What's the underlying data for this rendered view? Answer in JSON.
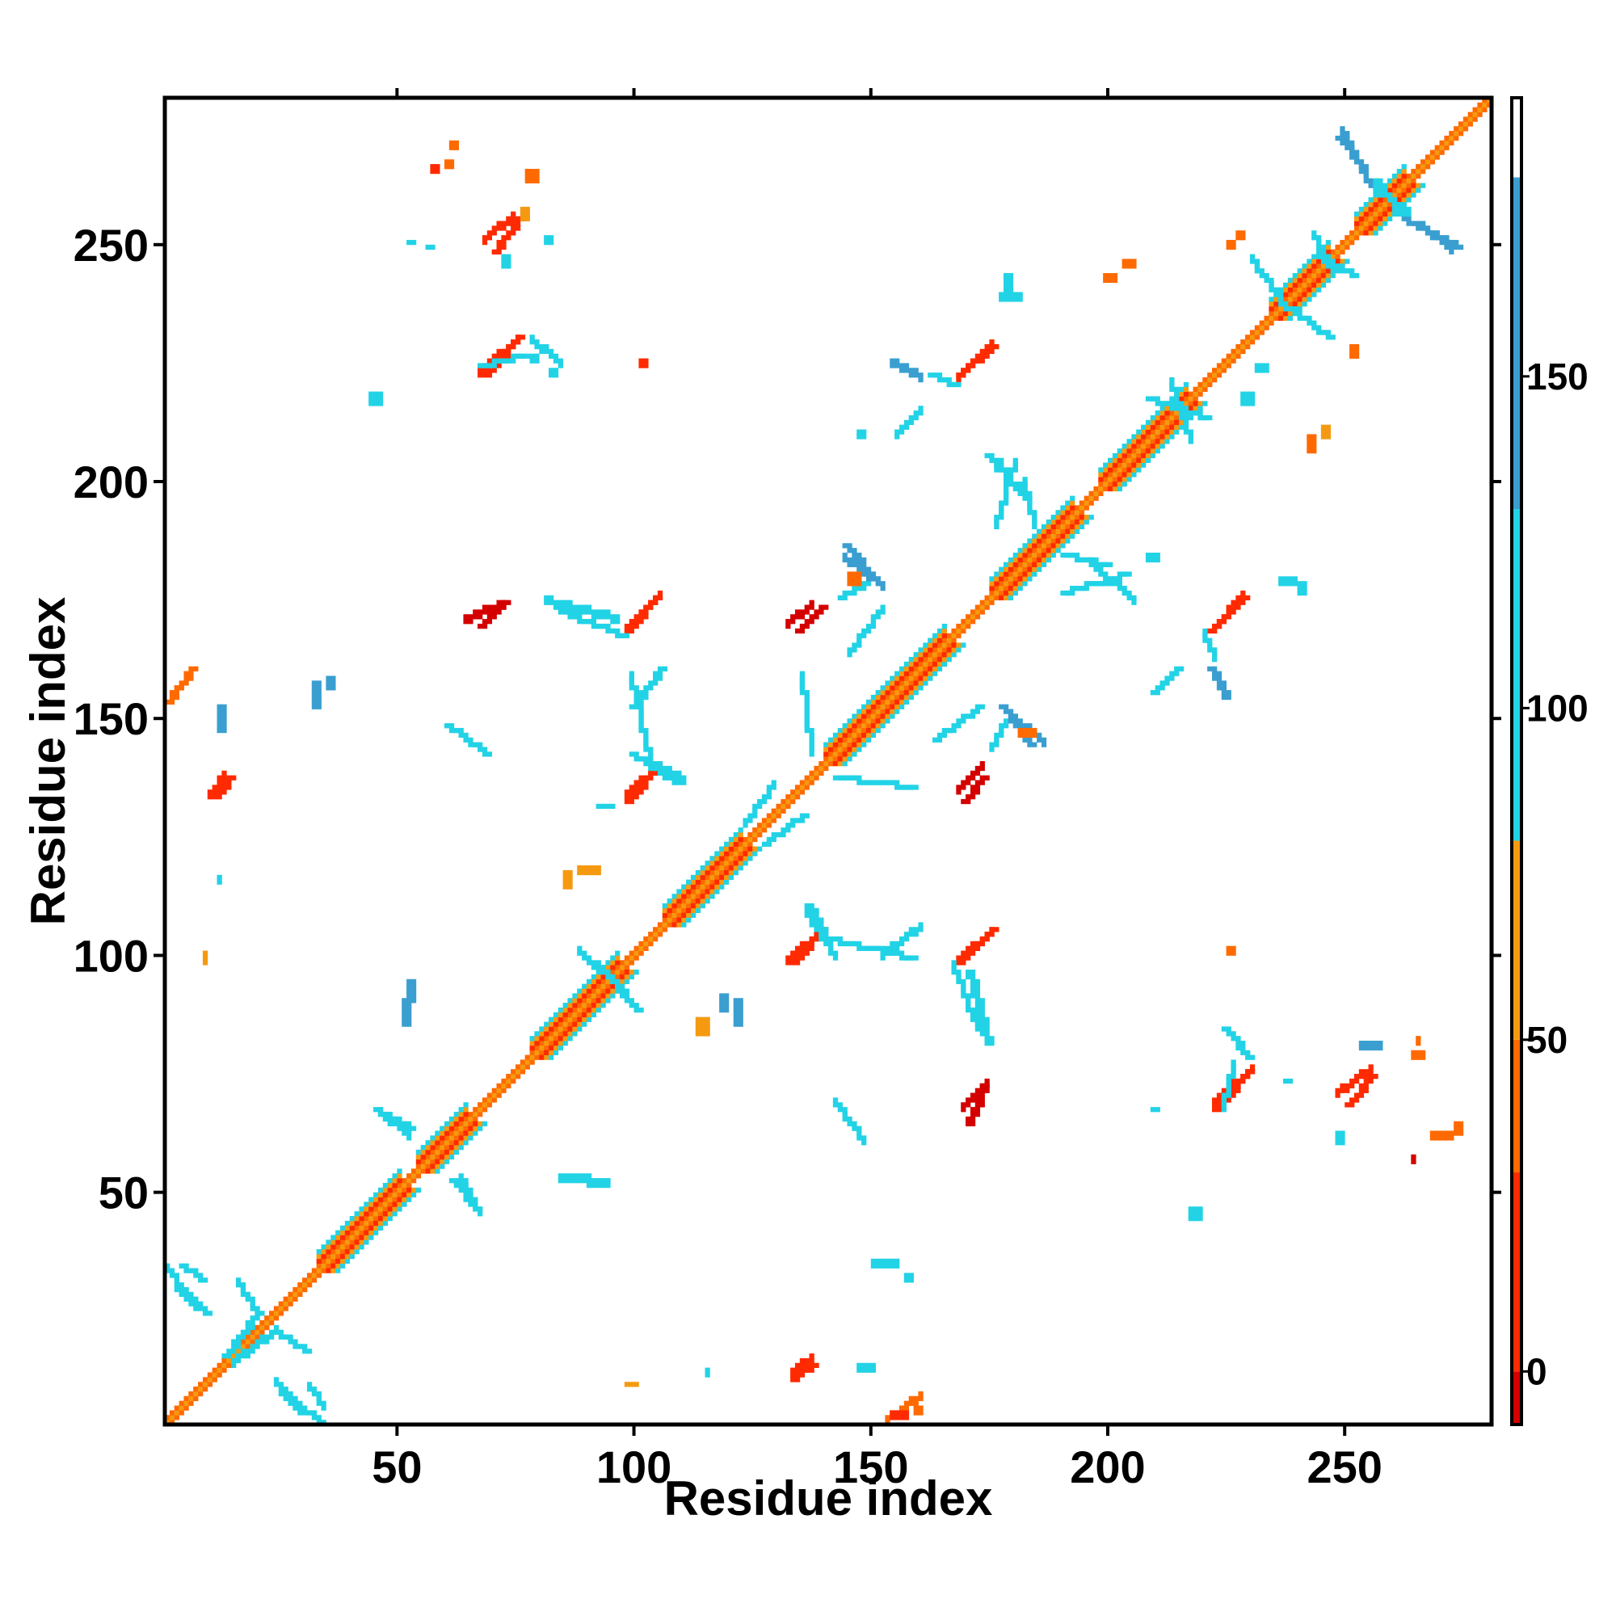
{
  "chart_data": {
    "type": "heatmap",
    "xlabel": "Residue index",
    "ylabel": "Residue index",
    "xlim": [
      1,
      281
    ],
    "ylim": [
      1,
      281
    ],
    "x_ticks": [
      50,
      100,
      150,
      200,
      250
    ],
    "y_ticks": [
      50,
      100,
      150,
      200,
      250
    ],
    "colorbar": {
      "range": [
        -8,
        192
      ],
      "ticks": [
        0,
        50,
        100,
        150
      ],
      "bands": [
        {
          "from": -8,
          "to": 0,
          "color": "#d40000"
        },
        {
          "from": 0,
          "to": 30,
          "color": "#ff2a00"
        },
        {
          "from": 30,
          "to": 50,
          "color": "#ff6a00"
        },
        {
          "from": 50,
          "to": 80,
          "color": "#f59a10"
        },
        {
          "from": 80,
          "to": 130,
          "color": "#22d3e6"
        },
        {
          "from": 130,
          "to": 180,
          "color": "#3a9fd0"
        },
        {
          "from": 180,
          "to": 192,
          "color": "#ffffff"
        }
      ]
    },
    "colors": {
      "diag_core": "#ff6a00",
      "diag_center": "#f59a10",
      "red": "#ff2a00",
      "dark_red": "#d40000",
      "orange": "#ff6a00",
      "amber": "#f59a10",
      "cyan": "#22d3e6",
      "steel": "#3a9fd0",
      "slate": "#4a7fb5"
    },
    "helix_segments": [
      [
        33,
        50
      ],
      [
        54,
        64
      ],
      [
        78,
        96
      ],
      [
        106,
        122
      ],
      [
        140,
        165
      ],
      [
        175,
        192
      ],
      [
        198,
        216
      ],
      [
        234,
        246
      ],
      [
        252,
        262
      ]
    ],
    "contact_strands": [
      {
        "x1": 68,
        "y1": 222,
        "x2": 75,
        "y2": 230,
        "color": "red"
      },
      {
        "x1": 70,
        "y1": 248,
        "x2": 75,
        "y2": 255,
        "color": "red"
      },
      {
        "x1": 168,
        "y1": 222,
        "x2": 175,
        "y2": 228,
        "color": "red"
      },
      {
        "x1": 98,
        "y1": 168,
        "x2": 104,
        "y2": 175,
        "color": "red"
      },
      {
        "x1": 98,
        "y1": 132,
        "x2": 104,
        "y2": 139,
        "color": "red"
      },
      {
        "x1": 133,
        "y1": 98,
        "x2": 139,
        "y2": 105,
        "color": "red"
      },
      {
        "x1": 168,
        "y1": 98,
        "x2": 175,
        "y2": 105,
        "color": "red"
      },
      {
        "x1": 221,
        "y1": 168,
        "x2": 228,
        "y2": 175,
        "color": "red"
      },
      {
        "x1": 222,
        "y1": 67,
        "x2": 229,
        "y2": 75,
        "color": "red"
      },
      {
        "x1": 250,
        "y1": 68,
        "x2": 255,
        "y2": 74,
        "color": "red"
      },
      {
        "x1": 133,
        "y1": 10,
        "x2": 137,
        "y2": 13,
        "color": "red"
      },
      {
        "x1": 11,
        "y1": 133,
        "x2": 14,
        "y2": 137,
        "color": "red"
      },
      {
        "x1": 170,
        "y1": 64,
        "x2": 173,
        "y2": 72,
        "color": "dark_red"
      },
      {
        "x1": 134,
        "y1": 168,
        "x2": 139,
        "y2": 173,
        "color": "dark_red"
      },
      {
        "x1": 169,
        "y1": 132,
        "x2": 173,
        "y2": 137,
        "color": "dark_red"
      },
      {
        "x1": 67,
        "y1": 169,
        "x2": 72,
        "y2": 174,
        "color": "dark_red"
      },
      {
        "x1": 3,
        "y1": 156,
        "x2": 6,
        "y2": 160,
        "color": "orange"
      },
      {
        "x1": 1,
        "y1": 153,
        "x2": 3,
        "y2": 156,
        "color": "orange"
      },
      {
        "x1": 3,
        "y1": 29,
        "x2": 9,
        "y2": 24,
        "color": "cyan"
      },
      {
        "x1": 13,
        "y1": 15,
        "x2": 20,
        "y2": 24,
        "color": "cyan"
      },
      {
        "x1": 25,
        "y1": 7,
        "x2": 33,
        "y2": 1,
        "color": "cyan"
      },
      {
        "x1": 45,
        "y1": 67,
        "x2": 52,
        "y2": 63,
        "color": "cyan"
      },
      {
        "x1": 61,
        "y1": 52,
        "x2": 66,
        "y2": 46,
        "color": "cyan"
      },
      {
        "x1": 248,
        "y1": 272,
        "x2": 253,
        "y2": 266,
        "color": "steel"
      },
      {
        "x1": 262,
        "y1": 255,
        "x2": 273,
        "y2": 249,
        "color": "steel"
      },
      {
        "x1": 256,
        "y1": 263,
        "x2": 261,
        "y2": 256,
        "color": "cyan"
      },
      {
        "x1": 105,
        "y1": 160,
        "x2": 99,
        "y2": 152,
        "color": "cyan"
      },
      {
        "x1": 99,
        "y1": 142,
        "x2": 108,
        "y2": 136,
        "color": "cyan"
      },
      {
        "x1": 136,
        "y1": 110,
        "x2": 139,
        "y2": 104,
        "color": "cyan"
      },
      {
        "x1": 140,
        "y1": 103,
        "x2": 158,
        "y2": 99,
        "color": "cyan"
      },
      {
        "x1": 170,
        "y1": 96,
        "x2": 174,
        "y2": 81,
        "color": "cyan"
      },
      {
        "x1": 142,
        "y1": 137,
        "x2": 158,
        "y2": 135,
        "color": "cyan"
      },
      {
        "x1": 60,
        "y1": 148,
        "x2": 68,
        "y2": 142,
        "color": "cyan"
      },
      {
        "x1": 84,
        "y1": 172,
        "x2": 97,
        "y2": 167,
        "color": "cyan"
      },
      {
        "x1": 163,
        "y1": 145,
        "x2": 172,
        "y2": 152,
        "color": "cyan"
      },
      {
        "x1": 190,
        "y1": 176,
        "x2": 203,
        "y2": 180,
        "color": "cyan"
      },
      {
        "x1": 190,
        "y1": 184,
        "x2": 199,
        "y2": 182,
        "color": "cyan"
      },
      {
        "x1": 174,
        "y1": 205,
        "x2": 182,
        "y2": 196,
        "color": "cyan"
      },
      {
        "x1": 208,
        "y1": 217,
        "x2": 220,
        "y2": 213,
        "color": "cyan"
      },
      {
        "x1": 162,
        "y1": 222,
        "x2": 167,
        "y2": 220,
        "color": "cyan"
      },
      {
        "x1": 67,
        "y1": 224,
        "x2": 76,
        "y2": 226,
        "color": "cyan"
      },
      {
        "x1": 236,
        "y1": 237,
        "x2": 246,
        "y2": 230,
        "color": "cyan"
      },
      {
        "x1": 244,
        "y1": 247,
        "x2": 251,
        "y2": 243,
        "color": "cyan"
      },
      {
        "x1": 221,
        "y1": 160,
        "x2": 224,
        "y2": 154,
        "color": "steel"
      },
      {
        "x1": 209,
        "y1": 155,
        "x2": 214,
        "y2": 160,
        "color": "cyan"
      },
      {
        "x1": 143,
        "y1": 175,
        "x2": 148,
        "y2": 178,
        "color": "cyan"
      },
      {
        "x1": 144,
        "y1": 186,
        "x2": 150,
        "y2": 179,
        "color": "steel"
      },
      {
        "x1": 177,
        "y1": 152,
        "x2": 183,
        "y2": 144,
        "color": "steel"
      },
      {
        "x1": 8,
        "y1": 31,
        "x2": 4,
        "y2": 34,
        "color": "cyan"
      },
      {
        "x1": 224,
        "y1": 84,
        "x2": 229,
        "y2": 78,
        "color": "cyan"
      },
      {
        "x1": 127,
        "y1": 123,
        "x2": 135,
        "y2": 129,
        "color": "cyan"
      },
      {
        "x1": 94,
        "y1": 95,
        "x2": 100,
        "y2": 88,
        "color": "cyan"
      },
      {
        "x1": 24,
        "y1": 20,
        "x2": 30,
        "y2": 16,
        "color": "cyan"
      }
    ],
    "contact_blocks": [
      {
        "x": 35,
        "y": 156,
        "w": 2,
        "h": 3,
        "color": "steel"
      },
      {
        "x": 32,
        "y": 152,
        "w": 2,
        "h": 6,
        "color": "steel"
      },
      {
        "x": 12,
        "y": 147,
        "w": 2,
        "h": 6,
        "color": "steel"
      },
      {
        "x": 51,
        "y": 85,
        "w": 2,
        "h": 6,
        "color": "steel"
      },
      {
        "x": 52,
        "y": 90,
        "w": 2,
        "h": 5,
        "color": "steel"
      },
      {
        "x": 44,
        "y": 216,
        "w": 3,
        "h": 3,
        "color": "cyan"
      },
      {
        "x": 84,
        "y": 52,
        "w": 7,
        "h": 2,
        "color": "cyan"
      },
      {
        "x": 90,
        "y": 51,
        "w": 5,
        "h": 2,
        "color": "cyan"
      },
      {
        "x": 150,
        "y": 34,
        "w": 6,
        "h": 2,
        "color": "cyan"
      },
      {
        "x": 147,
        "y": 12,
        "w": 4,
        "h": 2,
        "color": "cyan"
      },
      {
        "x": 217,
        "y": 44,
        "w": 3,
        "h": 3,
        "color": "cyan"
      },
      {
        "x": 145,
        "y": 178,
        "w": 3,
        "h": 3,
        "color": "orange"
      },
      {
        "x": 181,
        "y": 146,
        "w": 4,
        "h": 2,
        "color": "orange"
      },
      {
        "x": 85,
        "y": 114,
        "w": 2,
        "h": 4,
        "color": "amber"
      },
      {
        "x": 88,
        "y": 117,
        "w": 5,
        "h": 2,
        "color": "amber"
      },
      {
        "x": 113,
        "y": 83,
        "w": 3,
        "h": 4,
        "color": "amber"
      },
      {
        "x": 118,
        "y": 88,
        "w": 2,
        "h": 4,
        "color": "steel"
      },
      {
        "x": 121,
        "y": 85,
        "w": 2,
        "h": 6,
        "color": "steel"
      },
      {
        "x": 61,
        "y": 270,
        "w": 2,
        "h": 2,
        "color": "orange"
      },
      {
        "x": 60,
        "y": 266,
        "w": 2,
        "h": 2,
        "color": "orange"
      },
      {
        "x": 77,
        "y": 263,
        "w": 3,
        "h": 3,
        "color": "orange"
      },
      {
        "x": 76,
        "y": 255,
        "w": 2,
        "h": 3,
        "color": "amber"
      },
      {
        "x": 101,
        "y": 224,
        "w": 2,
        "h": 2,
        "color": "red"
      },
      {
        "x": 57,
        "y": 265,
        "w": 2,
        "h": 2,
        "color": "red"
      },
      {
        "x": 242,
        "y": 206,
        "w": 2,
        "h": 4,
        "color": "orange"
      },
      {
        "x": 245,
        "y": 209,
        "w": 2,
        "h": 3,
        "color": "amber"
      },
      {
        "x": 251,
        "y": 226,
        "w": 2,
        "h": 3,
        "color": "orange"
      },
      {
        "x": 225,
        "y": 249,
        "w": 2,
        "h": 2,
        "color": "orange"
      },
      {
        "x": 227,
        "y": 251,
        "w": 2,
        "h": 2,
        "color": "orange"
      },
      {
        "x": 203,
        "y": 245,
        "w": 3,
        "h": 2,
        "color": "orange"
      },
      {
        "x": 199,
        "y": 242,
        "w": 3,
        "h": 2,
        "color": "orange"
      },
      {
        "x": 264,
        "y": 78,
        "w": 3,
        "h": 2,
        "color": "orange"
      },
      {
        "x": 265,
        "y": 81,
        "w": 1,
        "h": 2,
        "color": "orange"
      },
      {
        "x": 268,
        "y": 61,
        "w": 5,
        "h": 2,
        "color": "orange"
      },
      {
        "x": 273,
        "y": 62,
        "w": 2,
        "h": 3,
        "color": "orange"
      },
      {
        "x": 264,
        "y": 56,
        "w": 1,
        "h": 2,
        "color": "dark_red"
      },
      {
        "x": 225,
        "y": 100,
        "w": 2,
        "h": 2,
        "color": "orange"
      },
      {
        "x": 9,
        "y": 98,
        "w": 1,
        "h": 3,
        "color": "amber"
      },
      {
        "x": 154,
        "y": 2,
        "w": 4,
        "h": 2,
        "color": "red"
      },
      {
        "x": 159,
        "y": 3,
        "w": 2,
        "h": 2,
        "color": "orange"
      },
      {
        "x": 98,
        "y": 9,
        "w": 3,
        "h": 1,
        "color": "amber"
      },
      {
        "x": 236,
        "y": 178,
        "w": 4,
        "h": 2,
        "color": "cyan"
      },
      {
        "x": 240,
        "y": 176,
        "w": 2,
        "h": 3,
        "color": "cyan"
      },
      {
        "x": 253,
        "y": 80,
        "w": 5,
        "h": 2,
        "color": "steel"
      },
      {
        "x": 248,
        "y": 60,
        "w": 2,
        "h": 3,
        "color": "cyan"
      },
      {
        "x": 177,
        "y": 238,
        "w": 5,
        "h": 2,
        "color": "cyan"
      },
      {
        "x": 178,
        "y": 240,
        "w": 2,
        "h": 4,
        "color": "cyan"
      },
      {
        "x": 176,
        "y": 202,
        "w": 2,
        "h": 3,
        "color": "cyan"
      },
      {
        "x": 181,
        "y": 197,
        "w": 2,
        "h": 3,
        "color": "cyan"
      },
      {
        "x": 72,
        "y": 245,
        "w": 2,
        "h": 3,
        "color": "cyan"
      },
      {
        "x": 52,
        "y": 250,
        "w": 2,
        "h": 1,
        "color": "cyan"
      },
      {
        "x": 56,
        "y": 249,
        "w": 2,
        "h": 1,
        "color": "cyan"
      },
      {
        "x": 81,
        "y": 250,
        "w": 2,
        "h": 2,
        "color": "cyan"
      },
      {
        "x": 78,
        "y": 225,
        "w": 2,
        "h": 2,
        "color": "cyan"
      },
      {
        "x": 82,
        "y": 222,
        "w": 2,
        "h": 2,
        "color": "cyan"
      },
      {
        "x": 208,
        "y": 183,
        "w": 3,
        "h": 2,
        "color": "cyan"
      },
      {
        "x": 231,
        "y": 223,
        "w": 3,
        "h": 2,
        "color": "cyan"
      },
      {
        "x": 147,
        "y": 209,
        "w": 2,
        "h": 2,
        "color": "cyan"
      },
      {
        "x": 228,
        "y": 216,
        "w": 3,
        "h": 3,
        "color": "cyan"
      },
      {
        "x": 92,
        "y": 131,
        "w": 4,
        "h": 1,
        "color": "cyan"
      },
      {
        "x": 12,
        "y": 115,
        "w": 1,
        "h": 2,
        "color": "cyan"
      },
      {
        "x": 157,
        "y": 31,
        "w": 2,
        "h": 2,
        "color": "cyan"
      },
      {
        "x": 115,
        "y": 11,
        "w": 1,
        "h": 2,
        "color": "cyan"
      },
      {
        "x": 209,
        "y": 67,
        "w": 2,
        "h": 1,
        "color": "cyan"
      },
      {
        "x": 237,
        "y": 73,
        "w": 2,
        "h": 1,
        "color": "cyan"
      }
    ]
  }
}
